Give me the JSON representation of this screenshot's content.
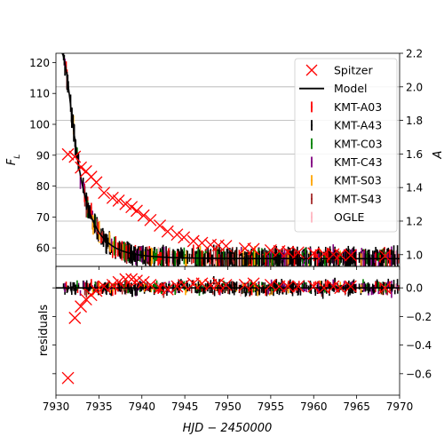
{
  "chart_data": {
    "type": "scatter",
    "xlabel": "HJD − 2450000",
    "xlim": [
      7930,
      7970
    ],
    "x_ticks": [
      "7930",
      "7935",
      "7940",
      "7945",
      "7950",
      "7955",
      "7960",
      "7965",
      "7970"
    ],
    "top_panel": {
      "ylabel_left": "F_L",
      "ylabel_right": "A",
      "ylim_left": [
        54,
        123
      ],
      "yticks_left": [
        "60",
        "70",
        "80",
        "90",
        "100",
        "110",
        "120"
      ],
      "ylim_right": [
        0.93,
        2.2
      ],
      "yticks_right": [
        "1.0",
        "1.2",
        "1.4",
        "1.6",
        "1.8",
        "2.0",
        "2.2"
      ],
      "gridlines_right_axis": [
        1.0,
        1.2,
        1.4,
        1.6,
        1.8,
        2.0
      ]
    },
    "bottom_panel": {
      "ylabel": "residuals",
      "ylim": [
        -0.75,
        0.15
      ],
      "yticks": [
        "0.0",
        "−0.2",
        "−0.4",
        "−0.6"
      ]
    },
    "legend": {
      "position": "top-right",
      "entries": [
        {
          "name": "Spitzer",
          "marker": "x",
          "color": "#ff0000"
        },
        {
          "name": "Model",
          "marker": "line",
          "color": "#000000"
        },
        {
          "name": "KMT-A03",
          "marker": "errorbar",
          "color": "#ff0000"
        },
        {
          "name": "KMT-A43",
          "marker": "errorbar",
          "color": "#000000"
        },
        {
          "name": "KMT-C03",
          "marker": "errorbar",
          "color": "#008000"
        },
        {
          "name": "KMT-C43",
          "marker": "errorbar",
          "color": "#800080"
        },
        {
          "name": "KMT-S03",
          "marker": "errorbar",
          "color": "#ffa500"
        },
        {
          "name": "KMT-S43",
          "marker": "errorbar",
          "color": "#a52a2a"
        },
        {
          "name": "OGLE",
          "marker": "errorbar",
          "color": "#ffb6c1"
        }
      ]
    },
    "model": {
      "t0": 7930.6,
      "u0": 0.5,
      "tE": 3.3,
      "flux_scale": 56.5
    },
    "spitzer_top": [
      {
        "x": 7931.4,
        "y": 90.3
      },
      {
        "x": 7932.2,
        "y": 89.5
      },
      {
        "x": 7932.9,
        "y": 86.0
      },
      {
        "x": 7933.5,
        "y": 84.8
      },
      {
        "x": 7934.1,
        "y": 83.0
      },
      {
        "x": 7934.7,
        "y": 81.2
      },
      {
        "x": 7935.6,
        "y": 77.8
      },
      {
        "x": 7936.6,
        "y": 76.2
      },
      {
        "x": 7937.3,
        "y": 75.3
      },
      {
        "x": 7938.1,
        "y": 74.2
      },
      {
        "x": 7938.8,
        "y": 73.2
      },
      {
        "x": 7939.4,
        "y": 72.0
      },
      {
        "x": 7940.2,
        "y": 70.5
      },
      {
        "x": 7941.0,
        "y": 69.0
      },
      {
        "x": 7942.1,
        "y": 67.2
      },
      {
        "x": 7943.0,
        "y": 65.3
      },
      {
        "x": 7944.1,
        "y": 64.3
      },
      {
        "x": 7944.9,
        "y": 63.4
      },
      {
        "x": 7946.0,
        "y": 62.2
      },
      {
        "x": 7947.0,
        "y": 61.6
      },
      {
        "x": 7948.0,
        "y": 61.0
      },
      {
        "x": 7948.9,
        "y": 60.8
      },
      {
        "x": 7949.8,
        "y": 60.6
      },
      {
        "x": 7952.0,
        "y": 59.8
      },
      {
        "x": 7953.0,
        "y": 59.6
      },
      {
        "x": 7955.0,
        "y": 59.2
      },
      {
        "x": 7956.0,
        "y": 58.9
      },
      {
        "x": 7957.0,
        "y": 58.7
      },
      {
        "x": 7958.2,
        "y": 58.5
      },
      {
        "x": 7960.0,
        "y": 58.2
      },
      {
        "x": 7961.2,
        "y": 58.0
      },
      {
        "x": 7962.3,
        "y": 57.9
      },
      {
        "x": 7963.1,
        "y": 57.8
      },
      {
        "x": 7964.3,
        "y": 57.6
      },
      {
        "x": 7968.3,
        "y": 57.4
      }
    ],
    "spitzer_residuals": [
      {
        "x": 7931.4,
        "y": -0.63
      },
      {
        "x": 7932.2,
        "y": -0.21
      },
      {
        "x": 7932.9,
        "y": -0.13
      },
      {
        "x": 7933.5,
        "y": -0.08
      },
      {
        "x": 7934.1,
        "y": -0.05
      },
      {
        "x": 7934.7,
        "y": -0.02
      },
      {
        "x": 7935.6,
        "y": 0.01
      },
      {
        "x": 7936.6,
        "y": 0.02
      },
      {
        "x": 7937.3,
        "y": 0.04
      },
      {
        "x": 7938.1,
        "y": 0.06
      },
      {
        "x": 7938.8,
        "y": 0.06
      },
      {
        "x": 7939.4,
        "y": 0.05
      },
      {
        "x": 7940.2,
        "y": 0.04
      },
      {
        "x": 7941.0,
        "y": 0.02
      },
      {
        "x": 7942.1,
        "y": 0.0
      },
      {
        "x": 7943.0,
        "y": -0.01
      },
      {
        "x": 7944.1,
        "y": 0.01
      },
      {
        "x": 7944.9,
        "y": 0.02
      },
      {
        "x": 7946.0,
        "y": 0.03
      },
      {
        "x": 7947.0,
        "y": 0.03
      },
      {
        "x": 7948.0,
        "y": 0.02
      },
      {
        "x": 7948.9,
        "y": 0.03
      },
      {
        "x": 7949.8,
        "y": 0.02
      },
      {
        "x": 7952.0,
        "y": 0.02
      },
      {
        "x": 7953.0,
        "y": 0.03
      },
      {
        "x": 7955.0,
        "y": 0.02
      },
      {
        "x": 7956.0,
        "y": 0.01
      },
      {
        "x": 7957.0,
        "y": 0.01
      },
      {
        "x": 7958.2,
        "y": 0.01
      },
      {
        "x": 7960.0,
        "y": 0.01
      },
      {
        "x": 7961.2,
        "y": 0.0
      },
      {
        "x": 7962.3,
        "y": 0.01
      },
      {
        "x": 7963.1,
        "y": 0.0
      },
      {
        "x": 7964.3,
        "y": 0.01
      },
      {
        "x": 7968.3,
        "y": 0.0
      }
    ],
    "ground_residual_scatter": 0.035
  }
}
